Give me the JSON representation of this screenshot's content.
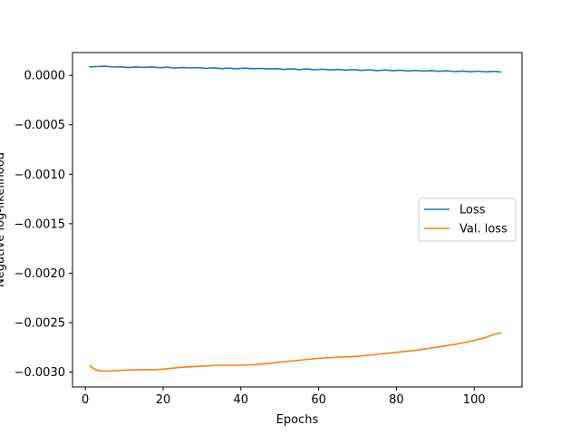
{
  "chart_data": {
    "type": "line",
    "title": "",
    "xlabel": "Epochs",
    "ylabel": "Negative log-likelihood",
    "xlim": [
      -3.3,
      112.3
    ],
    "ylim": [
      -0.00315,
      0.00023
    ],
    "xticks": [
      0,
      20,
      40,
      60,
      80,
      100
    ],
    "xtick_labels": [
      "0",
      "20",
      "40",
      "60",
      "80",
      "100"
    ],
    "yticks": [
      0.0,
      -0.0005,
      -0.001,
      -0.0015,
      -0.002,
      -0.0025,
      -0.003
    ],
    "ytick_labels": [
      "0.0000",
      "−0.0005",
      "−0.0010",
      "−0.0015",
      "−0.0020",
      "−0.0025",
      "−0.0030"
    ],
    "grid": false,
    "legend_position": "center-right",
    "series": [
      {
        "name": "Loss",
        "color": "#1f77b4",
        "x": [
          1,
          3,
          5,
          7,
          9,
          11,
          13,
          15,
          17,
          19,
          21,
          23,
          25,
          27,
          29,
          31,
          33,
          35,
          37,
          39,
          41,
          43,
          45,
          47,
          49,
          51,
          53,
          55,
          57,
          59,
          61,
          63,
          65,
          67,
          69,
          71,
          73,
          75,
          77,
          79,
          81,
          83,
          85,
          87,
          89,
          91,
          93,
          95,
          97,
          99,
          101,
          103,
          105,
          107
        ],
        "y": [
          8.5e-05,
          8.8e-05,
          9.2e-05,
          8.3e-05,
          8.6e-05,
          7.8e-05,
          8.5e-05,
          8e-05,
          8.4e-05,
          7.7e-05,
          8.2e-05,
          7.3e-05,
          8e-05,
          7.4e-05,
          7.8e-05,
          7e-05,
          7.6e-05,
          6.8e-05,
          7.2e-05,
          6.6e-05,
          7.2e-05,
          6.7e-05,
          7e-05,
          6.4e-05,
          6.8e-05,
          6e-05,
          6.6e-05,
          5.8e-05,
          6.4e-05,
          5.6e-05,
          6.2e-05,
          5.4e-05,
          6e-05,
          5.2e-05,
          5.8e-05,
          5e-05,
          5.6e-05,
          4.8e-05,
          5.4e-05,
          4.6e-05,
          5.2e-05,
          4.4e-05,
          5e-05,
          4.2e-05,
          4.8e-05,
          4e-05,
          4.6e-05,
          3.8e-05,
          4.4e-05,
          3.6e-05,
          4.2e-05,
          3.5e-05,
          4e-05,
          3.3e-05
        ]
      },
      {
        "name": "Val. loss",
        "color": "#ff7f0e",
        "x": [
          1,
          2,
          3,
          4,
          5,
          6,
          8,
          10,
          12,
          15,
          18,
          20,
          25,
          30,
          35,
          40,
          45,
          50,
          55,
          60,
          65,
          70,
          75,
          80,
          85,
          90,
          95,
          100,
          103,
          105,
          107
        ],
        "y": [
          -0.00293,
          -0.00296,
          -0.00298,
          -0.00299,
          -0.00299,
          -0.00299,
          -0.002985,
          -0.00298,
          -0.002978,
          -0.002975,
          -0.002975,
          -0.00297,
          -0.00295,
          -0.00294,
          -0.00293,
          -0.00293,
          -0.00292,
          -0.0029,
          -0.00288,
          -0.00286,
          -0.00285,
          -0.00284,
          -0.00282,
          -0.0028,
          -0.00278,
          -0.00275,
          -0.00272,
          -0.00268,
          -0.00265,
          -0.00262,
          -0.0026
        ]
      }
    ]
  }
}
